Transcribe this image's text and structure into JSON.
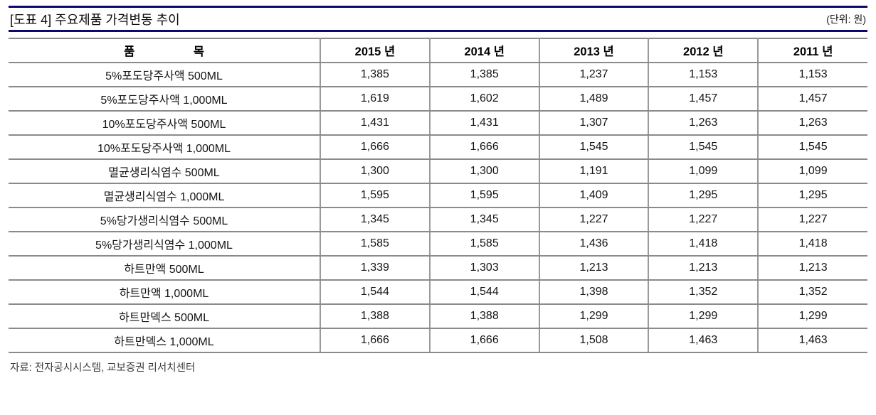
{
  "colors": {
    "accent_navy": "#0a0a6e",
    "table_border_gray": "#8a8a8a",
    "text_black": "#111111"
  },
  "header": {
    "title": "[도표 4] 주요제품 가격변동 추이",
    "unit": "(단위: 원)"
  },
  "table": {
    "columns": [
      "품　　　　　목",
      "2015 년",
      "2014 년",
      "2013 년",
      "2012 년",
      "2011 년"
    ],
    "rows": [
      {
        "item": "5%포도당주사액 500ML",
        "values": [
          "1,385",
          "1,385",
          "1,237",
          "1,153",
          "1,153"
        ]
      },
      {
        "item": "5%포도당주사액 1,000ML",
        "values": [
          "1,619",
          "1,602",
          "1,489",
          "1,457",
          "1,457"
        ]
      },
      {
        "item": "10%포도당주사액 500ML",
        "values": [
          "1,431",
          "1,431",
          "1,307",
          "1,263",
          "1,263"
        ]
      },
      {
        "item": "10%포도당주사액 1,000ML",
        "values": [
          "1,666",
          "1,666",
          "1,545",
          "1,545",
          "1,545"
        ]
      },
      {
        "item": "멸균생리식염수 500ML",
        "values": [
          "1,300",
          "1,300",
          "1,191",
          "1,099",
          "1,099"
        ]
      },
      {
        "item": "멸균생리식염수 1,000ML",
        "values": [
          "1,595",
          "1,595",
          "1,409",
          "1,295",
          "1,295"
        ]
      },
      {
        "item": "5%당가생리식염수 500ML",
        "values": [
          "1,345",
          "1,345",
          "1,227",
          "1,227",
          "1,227"
        ]
      },
      {
        "item": "5%당가생리식염수 1,000ML",
        "values": [
          "1,585",
          "1,585",
          "1,436",
          "1,418",
          "1,418"
        ]
      },
      {
        "item": "하트만액 500ML",
        "values": [
          "1,339",
          "1,303",
          "1,213",
          "1,213",
          "1,213"
        ]
      },
      {
        "item": "하트만액 1,000ML",
        "values": [
          "1,544",
          "1,544",
          "1,398",
          "1,352",
          "1,352"
        ]
      },
      {
        "item": "하트만덱스 500ML",
        "values": [
          "1,388",
          "1,388",
          "1,299",
          "1,299",
          "1,299"
        ]
      },
      {
        "item": "하트만덱스 1,000ML",
        "values": [
          "1,666",
          "1,666",
          "1,508",
          "1,463",
          "1,463"
        ]
      }
    ]
  },
  "footer": {
    "source": "자료: 전자공시시스템, 교보증권 리서치센터"
  }
}
